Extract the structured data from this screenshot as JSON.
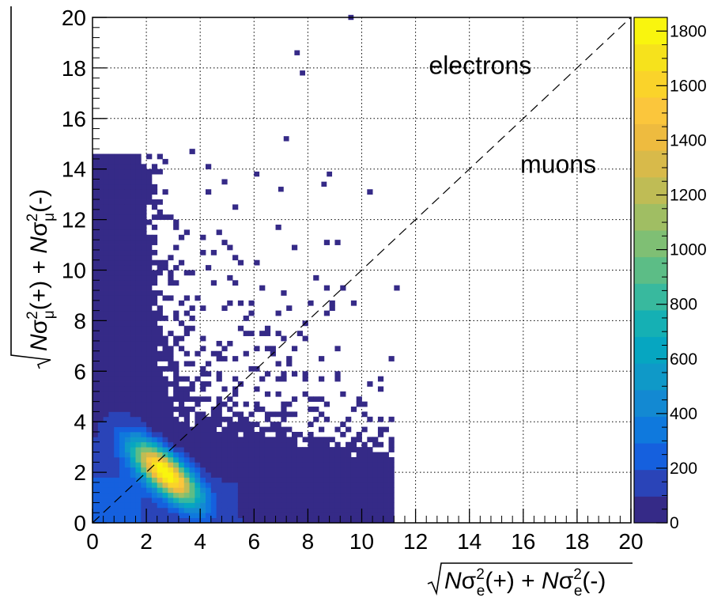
{
  "chart_data": {
    "type": "heatmap",
    "title": "",
    "xlabel": "√(Nσ²e(+) + Nσ²e(-))",
    "ylabel": "√(Nσ²μ(+) + Nσ²μ(-))",
    "xlabel_parts": {
      "sym": "N",
      "sigma": "σ",
      "sup": "2",
      "sub": "e",
      "p1": "(+) + ",
      "p2": "(-)"
    },
    "ylabel_parts": {
      "sym": "N",
      "sigma": "σ",
      "sup": "2",
      "sub": "μ",
      "p1": "(+) + ",
      "p2": "(-)"
    },
    "xlim": [
      0,
      20
    ],
    "ylim": [
      0,
      20
    ],
    "x_ticks": [
      "0",
      "2",
      "4",
      "6",
      "8",
      "10",
      "12",
      "14",
      "16",
      "18",
      "20"
    ],
    "y_ticks": [
      "0",
      "2",
      "4",
      "6",
      "8",
      "10",
      "12",
      "14",
      "16",
      "18",
      "20"
    ],
    "grid": true,
    "bin_width": 0.2,
    "z_range": [
      0,
      1850
    ],
    "z_ticks": [
      "0",
      "200",
      "400",
      "600",
      "800",
      "1000",
      "1200",
      "1400",
      "1600",
      "1800"
    ],
    "colormap": [
      "#352a87",
      "#2a44b8",
      "#1560de",
      "#0f79dd",
      "#1389d2",
      "#0f99c8",
      "#06a6c1",
      "#15b0b4",
      "#38b99e",
      "#5cbd86",
      "#7fbf74",
      "#a0be63",
      "#bfbc55",
      "#d8ba4a",
      "#eebb3f",
      "#fbc63c",
      "#fad32a",
      "#f6e21c",
      "#f9f50e"
    ],
    "separator_line": {
      "style": "dashed",
      "from": [
        0,
        0
      ],
      "to": [
        20,
        20
      ]
    },
    "annotations": [
      {
        "text": "electrons",
        "x": 14.4,
        "y": 18.1
      },
      {
        "text": "muons",
        "x": 17.3,
        "y": 14.2
      }
    ],
    "regions": [
      {
        "name": "muon peak",
        "x_center": 2.7,
        "y_center": 2.0,
        "peak_counts": 1820
      },
      {
        "name": "pion/kaon vertical band",
        "x_range": [
          0.1,
          3.5
        ],
        "y_range": [
          0,
          14.6
        ]
      },
      {
        "name": "high-x horizontal band",
        "x_range": [
          3.0,
          11.2
        ],
        "y_range": [
          0,
          5.0
        ]
      }
    ],
    "outliers": [
      [
        9.5,
        19.9
      ],
      [
        7.5,
        18.5
      ],
      [
        7.7,
        17.7
      ],
      [
        7.1,
        15.1
      ],
      [
        8.7,
        13.7
      ],
      [
        6.0,
        13.7
      ],
      [
        6.9,
        13.1
      ],
      [
        8.5,
        13.3
      ]
    ]
  }
}
